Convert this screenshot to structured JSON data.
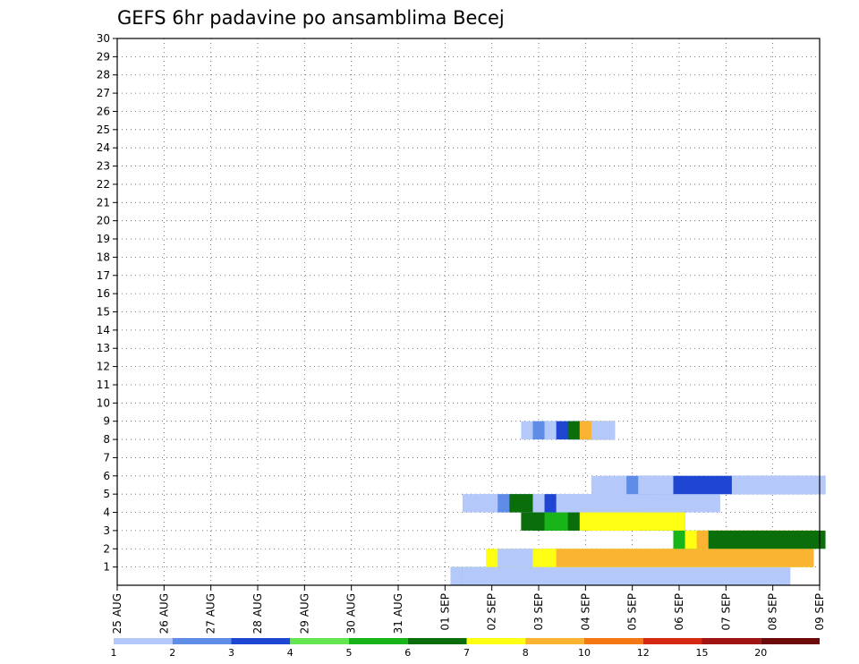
{
  "chart_data": {
    "type": "heatmap",
    "title": "GEFS 6hr padavine po ansamblima Becej",
    "x_labels": [
      "25 AUG",
      "26 AUG",
      "27 AUG",
      "28 AUG",
      "29 AUG",
      "30 AUG",
      "31 AUG",
      "01 SEP",
      "02 SEP",
      "03 SEP",
      "04 SEP",
      "05 SEP",
      "06 SEP",
      "07 SEP",
      "08 SEP",
      "09 SEP"
    ],
    "y_labels": [
      "1",
      "2",
      "3",
      "4",
      "5",
      "6",
      "7",
      "8",
      "9",
      "10",
      "11",
      "12",
      "13",
      "14",
      "15",
      "16",
      "17",
      "18",
      "19",
      "20",
      "21",
      "22",
      "23",
      "24",
      "25",
      "26",
      "27",
      "28",
      "29",
      "30"
    ],
    "time_steps": 61,
    "grid": true,
    "colorbar": {
      "labels": [
        "1",
        "2",
        "3",
        "4",
        "5",
        "6",
        "7",
        "8",
        "10",
        "12",
        "15",
        "20"
      ],
      "colors": [
        "#b4c8fa",
        "#5f8ce6",
        "#1e46d2",
        "#64e650",
        "#19b419",
        "#0a6e0a",
        "#ffff14",
        "#fab432",
        "#f57814",
        "#d72814",
        "#a01414",
        "#6e0a0a"
      ]
    },
    "cells": [
      [
        1,
        29,
        30,
        0
      ],
      [
        1,
        29,
        34,
        2
      ],
      [
        1,
        29,
        37,
        3
      ],
      [
        1,
        29,
        57,
        0
      ],
      [
        1,
        30,
        3,
        0
      ],
      [
        1,
        30,
        4,
        0
      ],
      [
        1,
        30,
        34,
        2
      ],
      [
        1,
        30,
        44,
        3
      ],
      [
        1,
        30,
        52,
        0
      ],
      [
        2,
        31,
        26,
        0
      ],
      [
        2,
        32,
        58,
        6
      ],
      [
        2,
        33,
        58,
        0
      ],
      [
        2,
        34,
        58,
        0
      ],
      [
        2,
        35,
        58,
        0
      ],
      [
        2,
        36,
        59,
        6
      ],
      [
        2,
        37,
        59,
        6
      ],
      [
        2,
        38,
        59,
        7
      ],
      [
        3,
        32,
        29,
        0
      ],
      [
        3,
        33,
        29,
        0
      ],
      [
        3,
        34,
        29,
        0
      ],
      [
        3,
        35,
        29,
        0
      ],
      [
        3,
        48,
        56,
        4
      ],
      [
        3,
        49,
        59,
        6
      ],
      [
        3,
        50,
        59,
        7
      ],
      [
        3,
        51,
        60,
        5
      ],
      [
        4,
        35,
        45,
        5
      ],
      [
        4,
        36,
        46,
        5
      ],
      [
        4,
        37,
        48,
        4
      ],
      [
        4,
        38,
        48,
        4
      ],
      [
        4,
        39,
        48,
        5
      ],
      [
        4,
        40,
        48,
        6
      ],
      [
        4,
        41,
        44,
        6
      ],
      [
        5,
        30,
        51,
        0
      ],
      [
        5,
        31,
        51,
        0
      ],
      [
        5,
        32,
        35,
        0
      ],
      [
        5,
        33,
        35,
        1
      ],
      [
        5,
        34,
        35,
        5
      ],
      [
        5,
        35,
        27,
        5
      ],
      [
        5,
        36,
        27,
        4
      ],
      [
        5,
        37,
        37,
        2
      ],
      [
        6,
        41,
        59,
        0
      ],
      [
        6,
        42,
        60,
        0
      ],
      [
        6,
        43,
        60,
        0
      ],
      [
        6,
        44,
        60,
        1
      ],
      [
        6,
        45,
        60,
        0
      ],
      [
        6,
        46,
        60,
        0
      ],
      [
        6,
        47,
        52,
        0
      ],
      [
        6,
        48,
        52,
        2
      ],
      [
        7,
        33,
        25,
        0
      ],
      [
        7,
        34,
        26,
        0
      ],
      [
        7,
        35,
        27,
        0
      ],
      [
        7,
        36,
        27,
        0
      ],
      [
        7,
        37,
        27,
        1
      ],
      [
        7,
        38,
        27,
        2
      ],
      [
        7,
        39,
        27,
        4
      ],
      [
        7,
        40,
        27,
        5
      ],
      [
        8,
        40,
        16,
        2
      ],
      [
        8,
        41,
        16,
        4
      ],
      [
        8,
        42,
        16,
        6
      ],
      [
        8,
        43,
        20,
        0
      ],
      [
        8,
        44,
        20,
        0
      ],
      [
        8,
        45,
        20,
        0
      ],
      [
        8,
        46,
        20,
        0
      ],
      [
        8,
        47,
        20,
        3
      ],
      [
        9,
        35,
        42,
        0
      ],
      [
        9,
        36,
        42,
        1
      ],
      [
        9,
        37,
        42,
        0
      ],
      [
        9,
        38,
        42,
        2
      ],
      [
        9,
        39,
        42,
        5
      ],
      [
        9,
        40,
        42,
        7
      ],
      [
        9,
        41,
        42,
        0
      ]
    ]
  }
}
